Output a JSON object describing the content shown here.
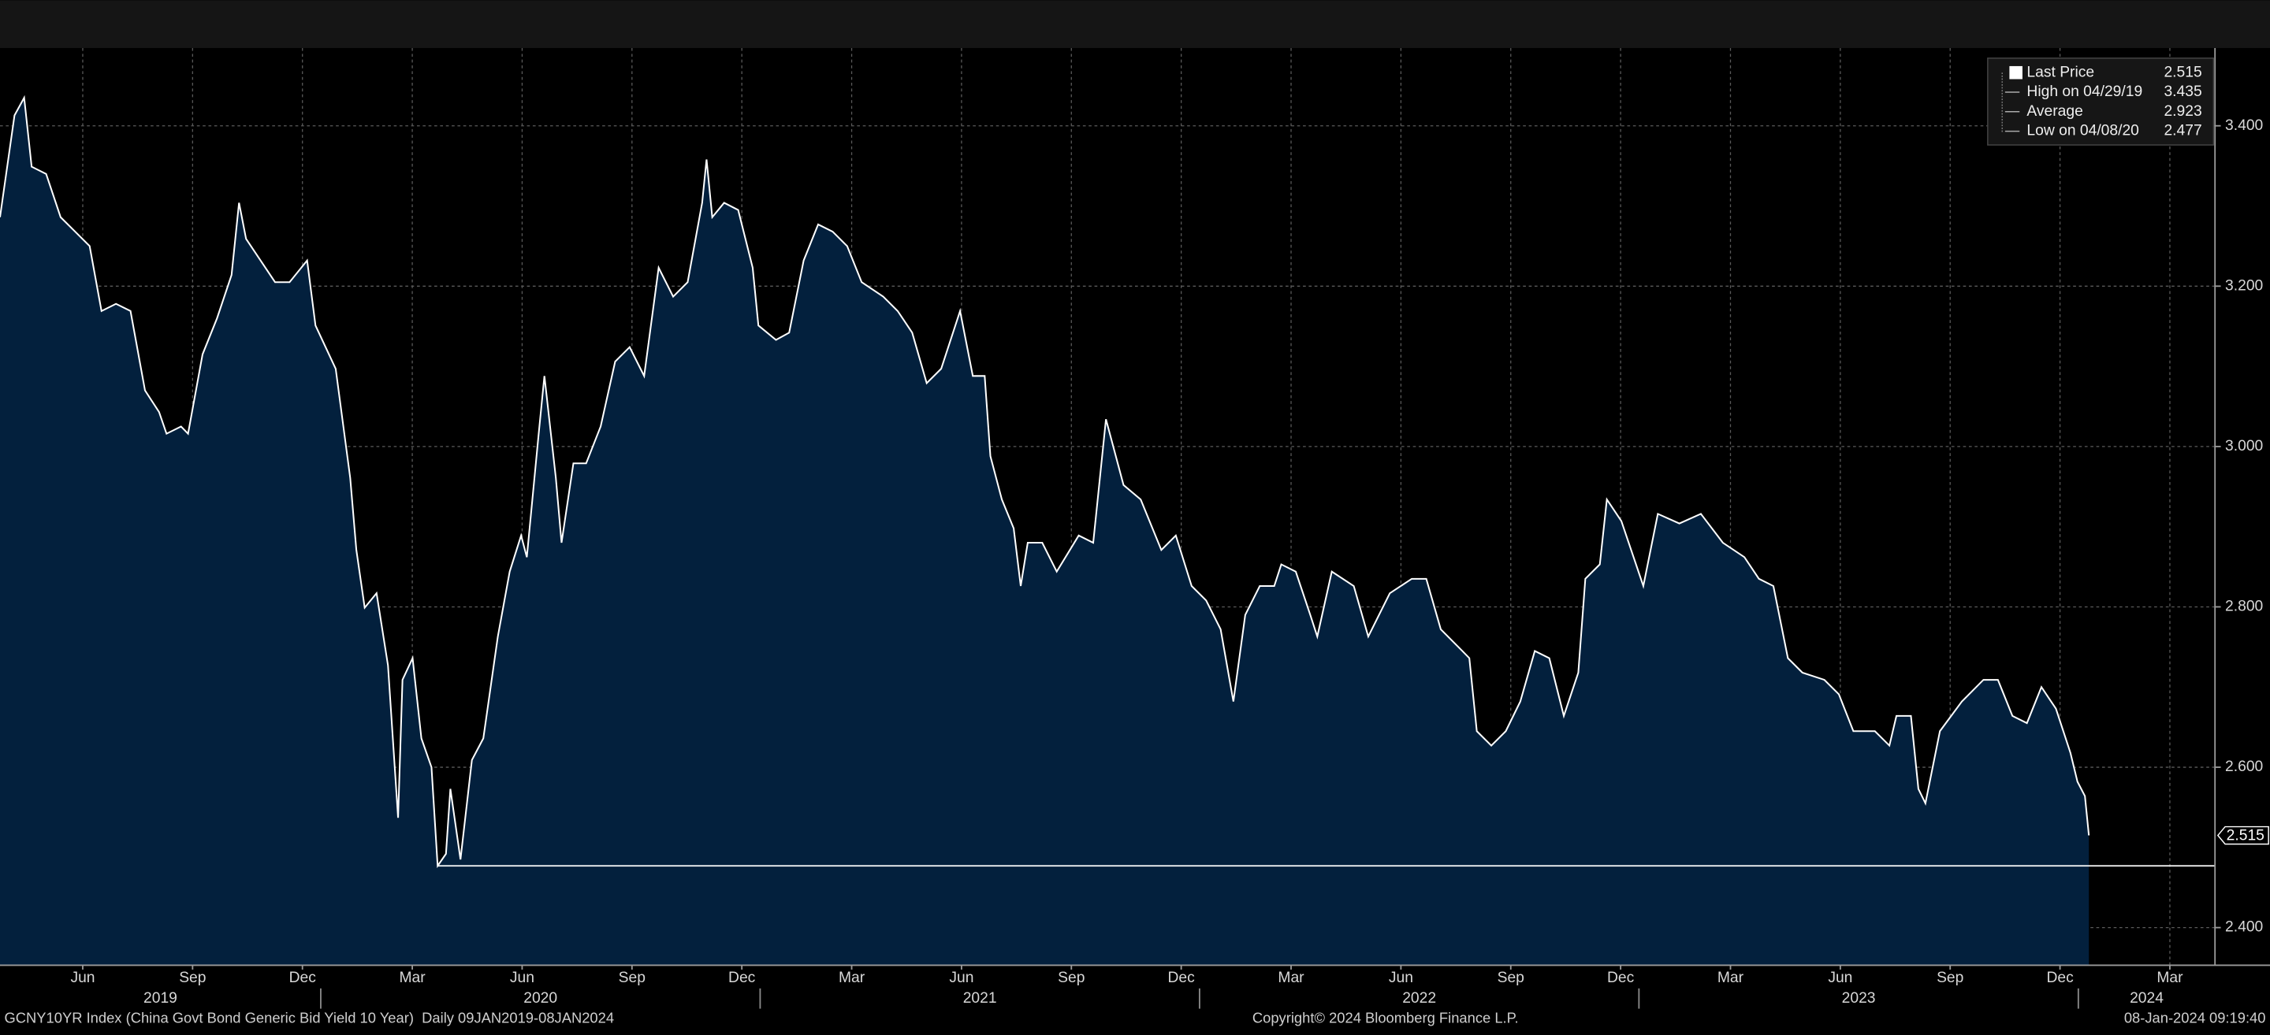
{
  "chart_data": {
    "type": "area",
    "x": [
      2019.27,
      2019.303,
      2019.325,
      2019.342,
      2019.375,
      2019.408,
      2019.441,
      2019.474,
      2019.501,
      2019.534,
      2019.567,
      2019.6,
      2019.632,
      2019.649,
      2019.682,
      2019.698,
      2019.731,
      2019.764,
      2019.797,
      2019.814,
      2019.83,
      2019.863,
      2019.896,
      2019.929,
      2019.969,
      2019.988,
      2020.034,
      2020.067,
      2020.081,
      2020.1,
      2020.127,
      2020.153,
      2020.176,
      2020.186,
      2020.209,
      2020.229,
      2020.252,
      2020.266,
      2020.285,
      2020.295,
      2020.318,
      2020.344,
      2020.37,
      2020.403,
      2020.43,
      2020.456,
      2020.469,
      2020.496,
      2020.509,
      2020.535,
      2020.548,
      2020.575,
      2020.604,
      2020.637,
      2020.67,
      2020.703,
      2020.736,
      2020.769,
      2020.802,
      2020.835,
      2020.868,
      2020.878,
      2020.891,
      2020.918,
      2020.95,
      2020.983,
      2020.996,
      2021.036,
      2021.066,
      2021.099,
      2021.132,
      2021.165,
      2021.198,
      2021.231,
      2021.28,
      2021.313,
      2021.346,
      2021.379,
      2021.412,
      2021.455,
      2021.484,
      2021.511,
      2021.524,
      2021.55,
      2021.577,
      2021.593,
      2021.609,
      2021.642,
      2021.675,
      2021.725,
      2021.758,
      2021.787,
      2021.827,
      2021.866,
      2021.913,
      2021.946,
      2021.982,
      2022.015,
      2022.048,
      2022.077,
      2022.104,
      2022.137,
      2022.17,
      2022.186,
      2022.219,
      2022.252,
      2022.268,
      2022.301,
      2022.351,
      2022.384,
      2022.433,
      2022.483,
      2022.516,
      2022.549,
      2022.598,
      2022.614,
      2022.631,
      2022.664,
      2022.697,
      2022.73,
      2022.763,
      2022.796,
      2022.829,
      2022.862,
      2022.878,
      2022.911,
      2022.927,
      2022.96,
      2023.01,
      2023.043,
      2023.092,
      2023.141,
      2023.191,
      2023.24,
      2023.273,
      2023.306,
      2023.339,
      2023.372,
      2023.422,
      2023.455,
      2023.488,
      2023.537,
      2023.57,
      2023.586,
      2023.619,
      2023.636,
      2023.652,
      2023.685,
      2023.735,
      2023.784,
      2023.817,
      2023.85,
      2023.883,
      2023.916,
      2023.949,
      2023.982,
      2023.998,
      2024.015,
      2024.024
    ],
    "values": [
      3.286,
      3.413,
      3.435,
      3.349,
      3.34,
      3.286,
      3.268,
      3.25,
      3.169,
      3.178,
      3.169,
      3.07,
      3.043,
      3.016,
      3.025,
      3.016,
      3.115,
      3.16,
      3.214,
      3.304,
      3.259,
      3.232,
      3.205,
      3.205,
      3.232,
      3.151,
      3.097,
      2.961,
      2.871,
      2.799,
      2.817,
      2.727,
      2.537,
      2.709,
      2.736,
      2.636,
      2.6,
      2.477,
      2.492,
      2.573,
      2.485,
      2.609,
      2.636,
      2.763,
      2.844,
      2.889,
      2.862,
      3.016,
      3.088,
      2.961,
      2.88,
      2.979,
      2.979,
      3.025,
      3.106,
      3.124,
      3.088,
      3.223,
      3.187,
      3.205,
      3.304,
      3.358,
      3.286,
      3.304,
      3.295,
      3.223,
      3.151,
      3.133,
      3.142,
      3.232,
      3.277,
      3.268,
      3.25,
      3.205,
      3.187,
      3.169,
      3.142,
      3.079,
      3.097,
      3.169,
      3.088,
      3.088,
      2.988,
      2.934,
      2.898,
      2.826,
      2.88,
      2.88,
      2.844,
      2.889,
      2.88,
      3.034,
      2.952,
      2.934,
      2.871,
      2.889,
      2.826,
      2.808,
      2.772,
      2.682,
      2.79,
      2.826,
      2.826,
      2.853,
      2.844,
      2.79,
      2.763,
      2.844,
      2.826,
      2.763,
      2.817,
      2.835,
      2.835,
      2.772,
      2.745,
      2.736,
      2.645,
      2.627,
      2.645,
      2.682,
      2.745,
      2.736,
      2.664,
      2.718,
      2.835,
      2.853,
      2.934,
      2.907,
      2.826,
      2.916,
      2.904,
      2.916,
      2.88,
      2.862,
      2.835,
      2.826,
      2.736,
      2.718,
      2.709,
      2.691,
      2.645,
      2.645,
      2.627,
      2.664,
      2.664,
      2.573,
      2.555,
      2.645,
      2.682,
      2.709,
      2.709,
      2.664,
      2.655,
      2.7,
      2.673,
      2.618,
      2.582,
      2.564,
      2.515
    ],
    "color": "#ffffff",
    "area_color": "#03203d",
    "xlim": [
      2019.27,
      2024.311
    ],
    "ylim": [
      2.353,
      3.497
    ],
    "yticks": [
      {
        "value": 2.4,
        "label": "2.400"
      },
      {
        "value": 2.6,
        "label": "2.600"
      },
      {
        "value": 2.8,
        "label": "2.800"
      },
      {
        "value": 3.0,
        "label": "3.000"
      },
      {
        "value": 3.2,
        "label": "3.200"
      },
      {
        "value": 3.4,
        "label": "3.400"
      }
    ],
    "xticks": [
      {
        "value": 2019.4583,
        "label": "Jun"
      },
      {
        "value": 2019.7083,
        "label": "Sep"
      },
      {
        "value": 2019.9583,
        "label": "Dec"
      },
      {
        "value": 2020.2083,
        "label": "Mar"
      },
      {
        "value": 2020.4583,
        "label": "Jun"
      },
      {
        "value": 2020.7083,
        "label": "Sep"
      },
      {
        "value": 2020.9583,
        "label": "Dec"
      },
      {
        "value": 2021.2083,
        "label": "Mar"
      },
      {
        "value": 2021.4583,
        "label": "Jun"
      },
      {
        "value": 2021.7083,
        "label": "Sep"
      },
      {
        "value": 2021.9583,
        "label": "Dec"
      },
      {
        "value": 2022.2083,
        "label": "Mar"
      },
      {
        "value": 2022.4583,
        "label": "Jun"
      },
      {
        "value": 2022.7083,
        "label": "Sep"
      },
      {
        "value": 2022.9583,
        "label": "Dec"
      },
      {
        "value": 2023.2083,
        "label": "Mar"
      },
      {
        "value": 2023.4583,
        "label": "Jun"
      },
      {
        "value": 2023.7083,
        "label": "Sep"
      },
      {
        "value": 2023.9583,
        "label": "Dec"
      },
      {
        "value": 2024.2083,
        "label": "Mar"
      }
    ],
    "year_ticks": [
      {
        "value": 2019,
        "label": "2019"
      },
      {
        "value": 2020,
        "label": "2020"
      },
      {
        "value": 2021,
        "label": "2021"
      },
      {
        "value": 2022,
        "label": "2022"
      },
      {
        "value": 2023,
        "label": "2023"
      },
      {
        "value": 2024,
        "label": "2024"
      }
    ],
    "grid": true,
    "legend_position": "upper right",
    "legend": [
      {
        "label": "Last Price",
        "value": 2.515
      },
      {
        "label": "High on 04/29/19",
        "value": 3.435
      },
      {
        "label": "Average",
        "value": 2.923
      },
      {
        "label": "Low on 04/08/20",
        "value": 2.477
      }
    ],
    "footer": {
      "left": "GCNY10YR Index (China Govt Bond Generic Bid Yield 10 Year)  Daily 09JAN2019-08JAN2024",
      "center": "Copyright© 2024 Bloomberg Finance L.P.",
      "right": "08-Jan-2024 09:19:40"
    }
  }
}
